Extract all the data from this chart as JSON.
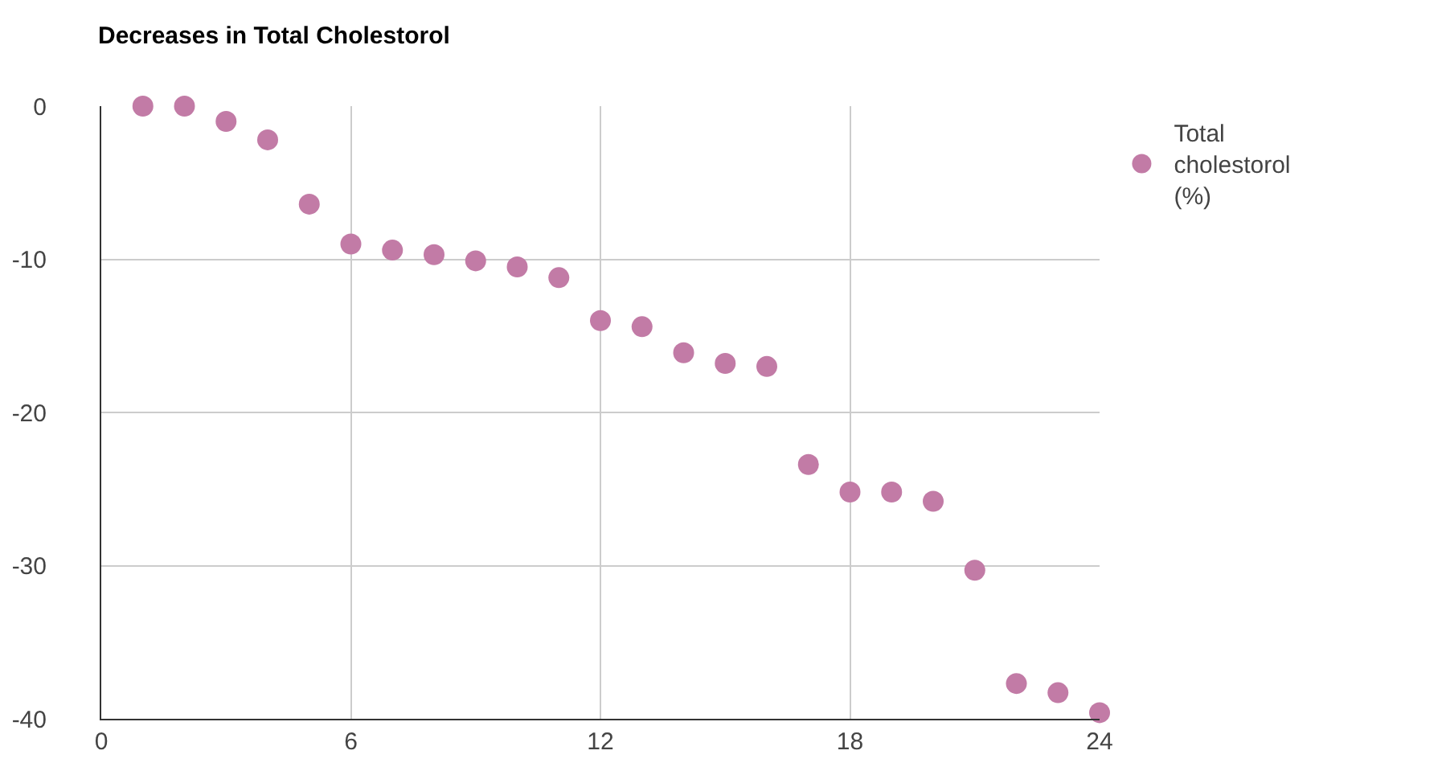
{
  "chart_data": {
    "type": "scatter",
    "title": "Decreases in Total Cholestorol",
    "x": [
      1,
      2,
      3,
      4,
      5,
      6,
      7,
      8,
      9,
      10,
      11,
      12,
      13,
      14,
      15,
      16,
      17,
      18,
      19,
      20,
      21,
      22,
      23,
      24
    ],
    "series": [
      {
        "name": "Total cholestorol (%)",
        "color": "#c27ba6",
        "values": [
          0,
          0,
          -1,
          -2.2,
          -6.4,
          -9,
          -9.4,
          -9.7,
          -10.1,
          -10.5,
          -11.2,
          -14,
          -14.4,
          -16.1,
          -16.8,
          -17,
          -23.4,
          -25.2,
          -25.2,
          -25.8,
          -30.3,
          -37.7,
          -38.3,
          -39.6
        ]
      }
    ],
    "xlim": [
      0,
      24
    ],
    "xticks": [
      0,
      6,
      12,
      18,
      24
    ],
    "ylim": [
      -40,
      0
    ],
    "yticks": [
      -40,
      -30,
      -20,
      -10,
      0
    ],
    "grid": true,
    "legend": "top right",
    "marker": "circle"
  }
}
